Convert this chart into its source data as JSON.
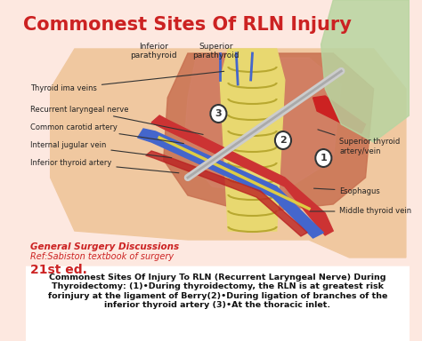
{
  "title": "Commonest Sites Of RLN Injury",
  "title_color": "#cc2222",
  "title_fontsize": 15,
  "bg_color": "#fde8e0",
  "left_labels": [
    "Thyroid ima veins",
    "Recurrent laryngeal nerve",
    "Common carotid artery",
    "Internal jugular vein",
    "Inferior thyroid artery"
  ],
  "top_labels": [
    "Inferior\nparathyroid",
    "Superior\nparathyroid"
  ],
  "right_labels": [
    "Superior thyroid\nartery/vein",
    "Esophagus",
    "Middle thyroid vein"
  ],
  "bottom_ref_line1": "General Surgery Discussions",
  "bottom_ref_line2": "Ref:Sabiston textbook of surgery",
  "bottom_ref_line3": "21st ed.",
  "bottom_text": "Commonest Sites Of Injury To RLN (Recurrent Laryngeal Nerve) During\nThyroidectomy: (1)•During thyroidectomy, the RLN is at greatest risk\nforinjury at the ligament of Berry(2)•During ligation of branches of the\ninferior thyroid artery (3)•At the thoracic inlet.",
  "ref_color": "#cc2222",
  "bottom_text_color": "#111111",
  "number_circles": [
    [
      "3",
      238,
      128
    ],
    [
      "2",
      318,
      158
    ],
    [
      "1",
      368,
      178
    ]
  ],
  "left_label_configs": [
    [
      0,
      5,
      100,
      248,
      80
    ],
    [
      1,
      5,
      123,
      222,
      152
    ],
    [
      2,
      5,
      143,
      198,
      162
    ],
    [
      3,
      5,
      163,
      183,
      178
    ],
    [
      4,
      5,
      183,
      192,
      195
    ]
  ],
  "right_label_configs": [
    [
      0,
      388,
      165,
      358,
      145
    ],
    [
      1,
      388,
      215,
      353,
      212
    ],
    [
      2,
      388,
      238,
      348,
      238
    ]
  ]
}
